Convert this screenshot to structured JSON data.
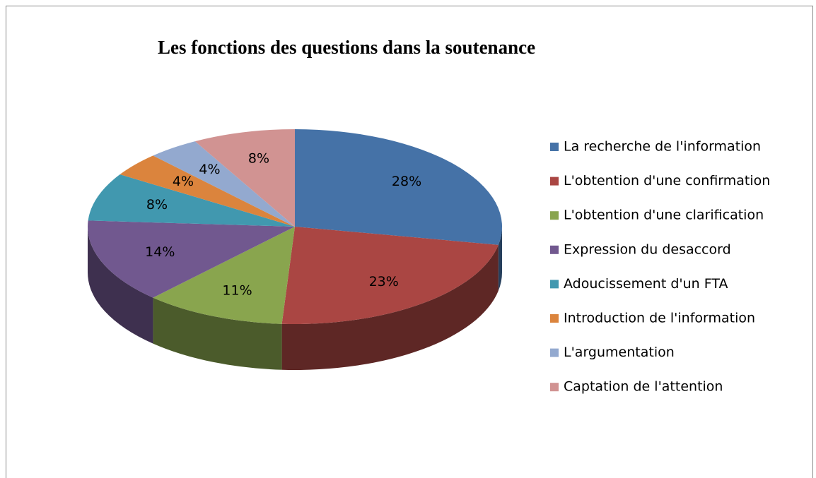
{
  "chart_data": {
    "type": "pie",
    "title": "Les fonctions des questions dans la soutenance",
    "categories": [
      "La recherche de l'information",
      "L'obtention d'une confirmation",
      "L'obtention d'une clarification",
      "Expression du desaccord",
      "Adoucissement d'un FTA",
      "Introduction de l'information",
      "L'argumentation",
      "Captation de l'attention"
    ],
    "values": [
      28,
      23,
      11,
      14,
      8,
      4,
      4,
      8
    ],
    "value_labels": [
      "28%",
      "23%",
      "11%",
      "14%",
      "8%",
      "4%",
      "4%",
      "8%"
    ],
    "colors": [
      "#4572a7",
      "#aa4643",
      "#89a54e",
      "#71588f",
      "#4198af",
      "#db843d",
      "#93a9cf",
      "#d19392"
    ],
    "legend": "right"
  }
}
